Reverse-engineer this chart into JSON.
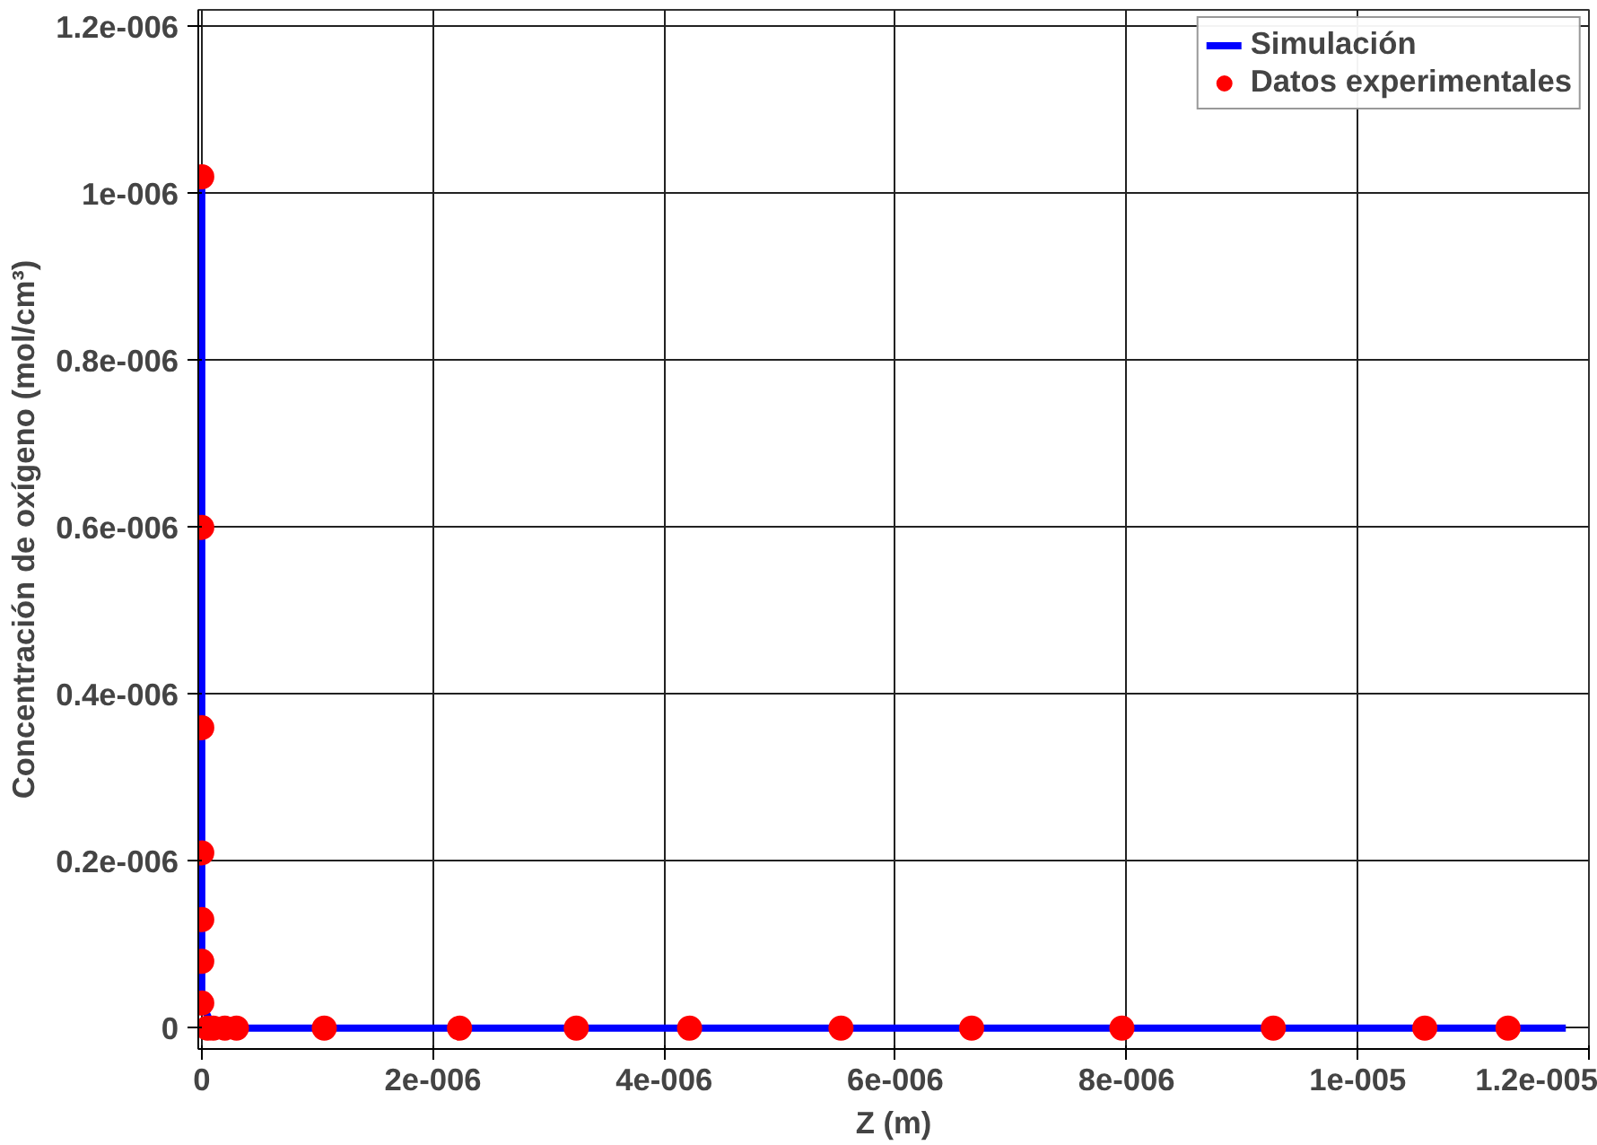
{
  "chart_data": {
    "type": "scatter",
    "xlabel": "Z (m)",
    "ylabel": "Concentración de oxígeno (mol/cm³)",
    "xlim": [
      -3e-08,
      1.2e-05
    ],
    "ylim": [
      -2.5e-08,
      1.22e-06
    ],
    "xticks": [
      {
        "value": 0,
        "label": "0"
      },
      {
        "value": 2e-06,
        "label": "2e-006"
      },
      {
        "value": 4e-06,
        "label": "4e-006"
      },
      {
        "value": 6e-06,
        "label": "6e-006"
      },
      {
        "value": 8e-06,
        "label": "8e-006"
      },
      {
        "value": 1e-05,
        "label": "1e-005"
      },
      {
        "value": 1.2e-05,
        "label": "1.2e-005"
      }
    ],
    "yticks": [
      {
        "value": 0,
        "label": "0"
      },
      {
        "value": 2e-07,
        "label": "0.2e-006"
      },
      {
        "value": 4e-07,
        "label": "0.4e-006"
      },
      {
        "value": 6e-07,
        "label": "0.6e-006"
      },
      {
        "value": 8e-07,
        "label": "0.8e-006"
      },
      {
        "value": 1e-06,
        "label": "1e-006"
      },
      {
        "value": 1.2e-06,
        "label": "1.2e-006"
      }
    ],
    "grid": true,
    "legend": "top right",
    "series": [
      {
        "name": "Simulación",
        "type": "line",
        "color": "#0000ff",
        "line_style": "solid",
        "x": [
          0,
          0,
          1e-07,
          1.18e-05
        ],
        "values": [
          1.02e-06,
          3e-08,
          0,
          0
        ]
      },
      {
        "name": "Datos experimentales",
        "color": "#ff0000",
        "marker": "circle",
        "x": [
          0,
          0,
          0,
          0,
          0,
          0,
          0,
          5e-08,
          1e-07,
          2e-07,
          3e-07,
          1.06e-06,
          2.23e-06,
          3.24e-06,
          4.22e-06,
          5.53e-06,
          6.66e-06,
          7.96e-06,
          9.27e-06,
          1.058e-05,
          1.13e-05
        ],
        "values": [
          1.02e-06,
          6e-07,
          3.6e-07,
          2.1e-07,
          1.3e-07,
          8e-08,
          3e-08,
          0,
          0,
          0,
          0,
          0,
          0,
          0,
          0,
          0,
          0,
          0,
          0,
          0,
          0
        ]
      }
    ]
  }
}
